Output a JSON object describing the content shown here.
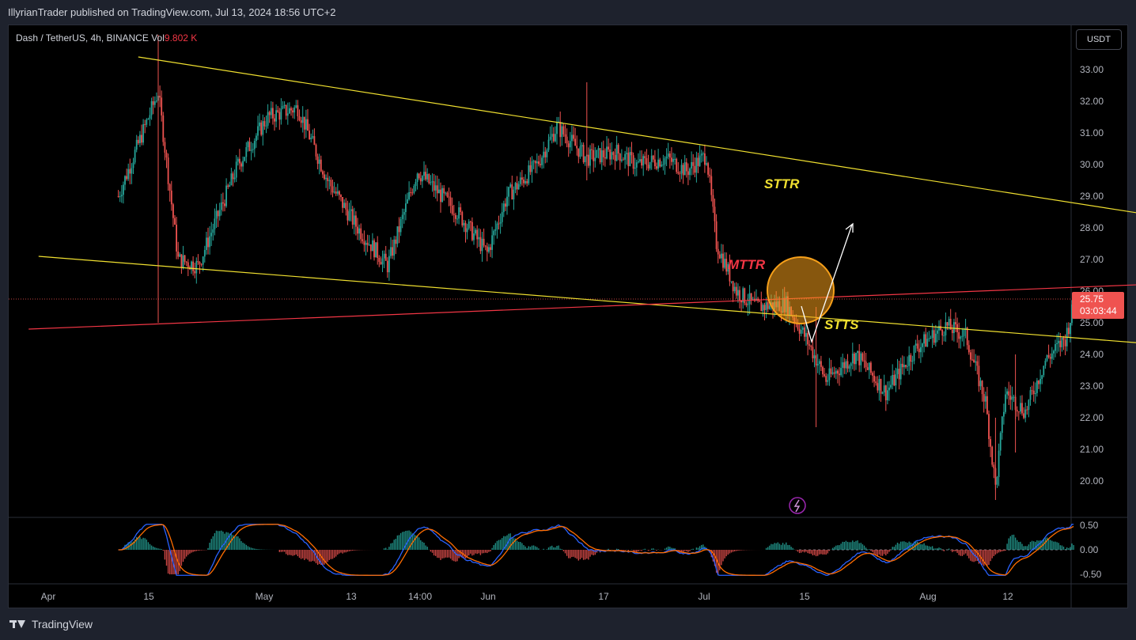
{
  "header": {
    "publisher": "IllyrianTrader published on TradingView.com, Jul 13, 2024 18:56 UTC+2"
  },
  "legend": {
    "symbol": "Dash / TetherUS, 4h, BINANCE",
    "vol_label": "Vol",
    "vol_value": "9.802 K"
  },
  "currency_button": "USDT",
  "footer": {
    "brand": "TradingView"
  },
  "colors": {
    "up": "#26a69a",
    "down": "#ef5350",
    "trendline": "#f0e030",
    "mttr": "#f23645",
    "circle": "#f59f1a",
    "arrow": "#ffffff"
  },
  "chart_data": [
    {
      "type": "candlestick",
      "title": "",
      "y_ticks": [
        "33.00",
        "32.00",
        "31.00",
        "30.00",
        "29.00",
        "28.00",
        "27.00",
        "26.00",
        "25.00",
        "24.00",
        "23.00",
        "22.00",
        "21.00",
        "20.00"
      ],
      "x_ticks": [
        "Apr",
        "15",
        "May",
        "13",
        "14:00",
        "Jun",
        "17",
        "Jul",
        "15",
        "Aug",
        "12"
      ],
      "ylim": [
        18.9,
        34.4
      ],
      "last_price": "25.75",
      "countdown": "03:03:44",
      "price_path": [
        {
          "x": "Apr 08",
          "y": 29.0
        },
        {
          "x": "Apr 12",
          "y": 32.3
        },
        {
          "x": "Apr 14",
          "y": 27.0
        },
        {
          "x": "Apr 16",
          "y": 26.8
        },
        {
          "x": "Apr 20",
          "y": 30.0
        },
        {
          "x": "Apr 23",
          "y": 31.5
        },
        {
          "x": "Apr 26",
          "y": 31.8
        },
        {
          "x": "Apr 29",
          "y": 29.5
        },
        {
          "x": "May 02",
          "y": 28.0
        },
        {
          "x": "May 05",
          "y": 26.8
        },
        {
          "x": "May 08",
          "y": 29.8
        },
        {
          "x": "May 12",
          "y": 28.5
        },
        {
          "x": "May 15",
          "y": 27.2
        },
        {
          "x": "May 17",
          "y": 29.0
        },
        {
          "x": "May 20",
          "y": 30.0
        },
        {
          "x": "May 22",
          "y": 31.2
        },
        {
          "x": "May 25",
          "y": 30.2
        },
        {
          "x": "May 28",
          "y": 30.4
        },
        {
          "x": "May 30",
          "y": 30.0
        },
        {
          "x": "Jun 02",
          "y": 30.2
        },
        {
          "x": "Jun 04",
          "y": 29.8
        },
        {
          "x": "Jun 06",
          "y": 30.3
        },
        {
          "x": "Jun 07",
          "y": 27.5
        },
        {
          "x": "Jun 09",
          "y": 26.0
        },
        {
          "x": "Jun 11",
          "y": 25.5
        },
        {
          "x": "Jun 14",
          "y": 25.6
        },
        {
          "x": "Jun 16",
          "y": 24.5
        },
        {
          "x": "Jun 18",
          "y": 23.2
        },
        {
          "x": "Jun 21",
          "y": 24.0
        },
        {
          "x": "Jun 24",
          "y": 22.8
        },
        {
          "x": "Jun 27",
          "y": 24.2
        },
        {
          "x": "Jun 30",
          "y": 24.9
        },
        {
          "x": "Jul 02",
          "y": 24.6
        },
        {
          "x": "Jul 04",
          "y": 22.5
        },
        {
          "x": "Jul 05",
          "y": 19.8
        },
        {
          "x": "Jul 06",
          "y": 22.8
        },
        {
          "x": "Jul 08",
          "y": 22.2
        },
        {
          "x": "Jul 10",
          "y": 23.8
        },
        {
          "x": "Jul 12",
          "y": 24.5
        },
        {
          "x": "Jul 13",
          "y": 25.75
        }
      ],
      "annotations": [
        {
          "text": "STTR",
          "color": "#f0e030"
        },
        {
          "text": "MTTR",
          "color": "#f23645"
        },
        {
          "text": "STTS",
          "color": "#f0e030"
        }
      ],
      "lines": [
        {
          "name": "STTR",
          "from": {
            "x": "Apr 10",
            "y": 33.4
          },
          "to": {
            "x": "Aug 06",
            "y": 27.6
          }
        },
        {
          "name": "STTS",
          "from": {
            "x": "Mar 31",
            "y": 27.1
          },
          "to": {
            "x": "Jul 22",
            "y": 24.3
          }
        },
        {
          "name": "MTTR",
          "from": {
            "x": "Mar 30",
            "y": 24.8
          },
          "to": {
            "x": "Aug 20",
            "y": 26.6
          }
        }
      ],
      "grid": false
    },
    {
      "type": "oscillator",
      "y_ticks": [
        "0.50",
        "0.00",
        "-0.50"
      ],
      "ylim": [
        -0.52,
        0.52
      ]
    }
  ]
}
